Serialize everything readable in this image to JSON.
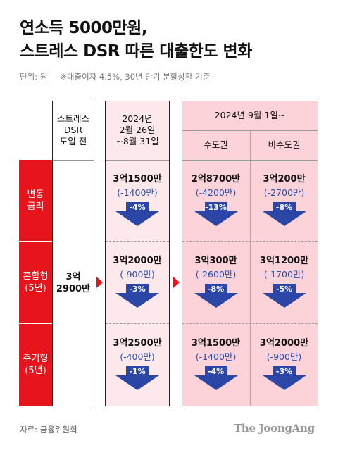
{
  "title_line1": "연소득 5000만원,",
  "title_line2": "스트레스 DSR 따른 대출한도 변화",
  "unit": "단위: 원",
  "note": "※대출이자 4.5%, 30년 만기 분할상환 기준",
  "headers": {
    "col1": [
      "스트레스",
      "DSR",
      "도입 전"
    ],
    "col2": [
      "2024년",
      "2월 26일",
      "~8월 31일"
    ],
    "col3_group": "2024년 9월 1일~",
    "col3a": "수도권",
    "col3b": "비수도권"
  },
  "row_labels": [
    [
      "변동",
      "금리"
    ],
    [
      "혼합형",
      "(5년)"
    ],
    [
      "주기형",
      "(5년)"
    ]
  ],
  "pre_value": [
    "3억",
    "2900만"
  ],
  "colors": {
    "accent": "#e8141c",
    "panel_light": "#fde9ec",
    "panel_dark": "#fbd3d8",
    "arrow": "#2c46a8",
    "change_text": "#2b4fb0"
  },
  "chart_data": {
    "type": "table",
    "title": "연소득 5000만원, 스트레스 DSR 따른 대출한도 변화",
    "unit": "원",
    "baseline": "3억 2900만",
    "columns": [
      "2024년 2월 26일~8월 31일",
      "2024년 9월 1일~ 수도권",
      "2024년 9월 1일~ 비수도권"
    ],
    "rows": [
      {
        "label": "변동금리",
        "cells": [
          {
            "value": "3억1500만",
            "change": "(-1400만)",
            "pct": "-4%"
          },
          {
            "value": "2억8700만",
            "change": "(-4200만)",
            "pct": "-13%"
          },
          {
            "value": "3억200만",
            "change": "(-2700만)",
            "pct": "-8%"
          }
        ]
      },
      {
        "label": "혼합형(5년)",
        "cells": [
          {
            "value": "3억2000만",
            "change": "(-900만)",
            "pct": "-3%"
          },
          {
            "value": "3억300만",
            "change": "(-2600만)",
            "pct": "-8%"
          },
          {
            "value": "3억1200만",
            "change": "(-1700만)",
            "pct": "-5%"
          }
        ]
      },
      {
        "label": "주기형(5년)",
        "cells": [
          {
            "value": "3억2500만",
            "change": "(-400만)",
            "pct": "-1%"
          },
          {
            "value": "3억1500만",
            "change": "(-1400만)",
            "pct": "-4%"
          },
          {
            "value": "3억2000만",
            "change": "(-900만)",
            "pct": "-3%"
          }
        ]
      }
    ]
  },
  "source": "자료: 금융위원회",
  "logo": "The JoongAng"
}
